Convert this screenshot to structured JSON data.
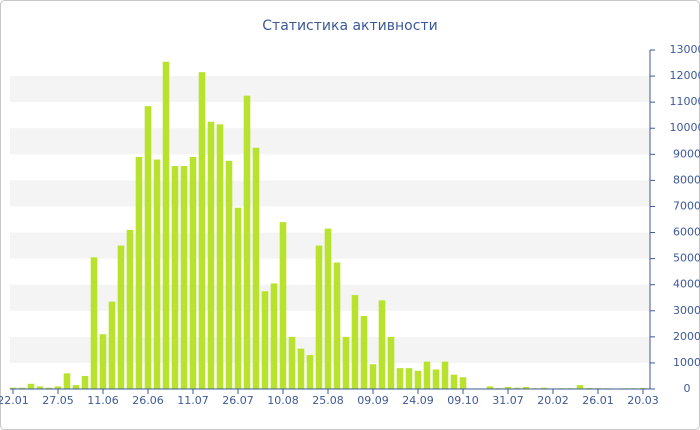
{
  "chart_data": {
    "type": "bar",
    "title": "Статистика активности",
    "categories": [
      "22.01",
      null,
      null,
      null,
      null,
      "27.05",
      null,
      null,
      null,
      null,
      "11.06",
      null,
      null,
      null,
      null,
      "26.06",
      null,
      null,
      null,
      null,
      "11.07",
      null,
      null,
      null,
      null,
      "26.07",
      null,
      null,
      null,
      null,
      "10.08",
      null,
      null,
      null,
      null,
      "25.08",
      null,
      null,
      null,
      null,
      "09.09",
      null,
      null,
      null,
      null,
      "24.09",
      null,
      null,
      null,
      null,
      "09.10",
      null,
      null,
      null,
      null,
      "31.07",
      null,
      null,
      null,
      null,
      "20.02",
      null,
      null,
      null,
      null,
      "26.01",
      null,
      null,
      null,
      null,
      "20.03"
    ],
    "values": [
      50,
      50,
      200,
      100,
      50,
      100,
      600,
      150,
      500,
      5050,
      2100,
      3350,
      5500,
      6100,
      8900,
      10850,
      8800,
      12550,
      8550,
      8550,
      8900,
      12150,
      10250,
      10150,
      8750,
      6950,
      11250,
      9250,
      3750,
      4050,
      6400,
      2000,
      1550,
      1300,
      5500,
      6150,
      4850,
      2000,
      3600,
      2800,
      950,
      3400,
      2000,
      800,
      800,
      700,
      1050,
      750,
      1050,
      550,
      450,
      0,
      20,
      100,
      30,
      80,
      50,
      80,
      30,
      50,
      20,
      30,
      30,
      150,
      40,
      30,
      30,
      20,
      30,
      30,
      40
    ],
    "color": "#b8e22e",
    "ylim": [
      0,
      13000
    ],
    "yticks": [
      0,
      1000,
      2000,
      3000,
      4000,
      5000,
      6000,
      7000,
      8000,
      9000,
      10000,
      11000,
      12000,
      13000
    ],
    "grid": true
  }
}
